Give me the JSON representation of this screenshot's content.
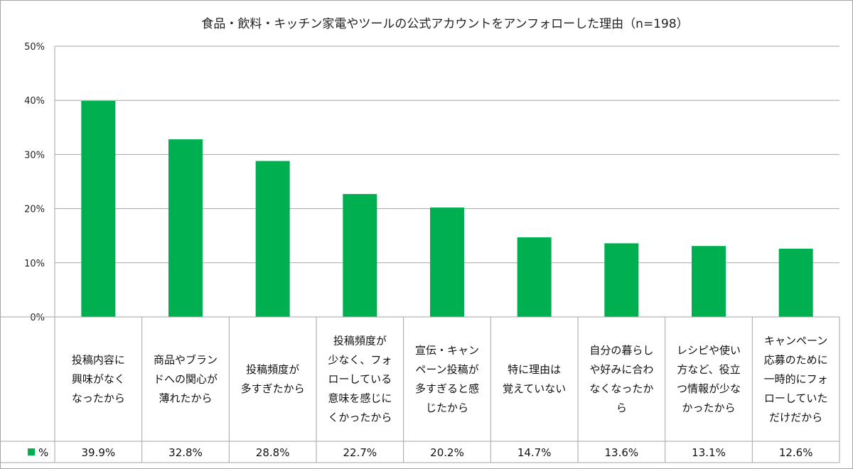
{
  "chart_data": {
    "type": "bar",
    "title": "食品・飲料・キッチン家電やツールの公式アカウントをアンフォローした理由（n=198）",
    "categories": [
      [
        "投稿内容に",
        "興味がなく",
        "なったから"
      ],
      [
        "商品やブラン",
        "ドへの関心が",
        "薄れたから"
      ],
      [
        "投稿頻度が",
        "多すぎたから"
      ],
      [
        "投稿頻度が",
        "少なく、フォ",
        "ローしている",
        "意味を感じに",
        "くかったから"
      ],
      [
        "宣伝・キャン",
        "ペーン投稿が",
        "多すぎると感",
        "じたから"
      ],
      [
        "特に理由は",
        "覚えていない"
      ],
      [
        "自分の暮らし",
        "や好みに合わ",
        "なくなったか",
        "ら"
      ],
      [
        "レシピや使い",
        "方など、役立",
        "つ情報が少な",
        "かったから"
      ],
      [
        "キャンペーン",
        "応募のために",
        "一時的にフォ",
        "ローしていた",
        "だけだから"
      ]
    ],
    "series": [
      {
        "name": "%",
        "color": "#00b050",
        "values": [
          39.9,
          32.8,
          28.8,
          22.7,
          20.2,
          14.7,
          13.6,
          13.1,
          12.6
        ],
        "value_labels": [
          "39.9%",
          "32.8%",
          "28.8%",
          "22.7%",
          "20.2%",
          "14.7%",
          "13.6%",
          "13.1%",
          "12.6%"
        ]
      }
    ],
    "ylim": [
      0,
      50
    ],
    "yticks": [
      0,
      10,
      20,
      30,
      40,
      50
    ],
    "ytick_labels": [
      "0%",
      "10%",
      "20%",
      "30%",
      "40%",
      "50%"
    ],
    "grid": true,
    "legend": "bottom-left data table",
    "colors": {
      "bar": "#00b050",
      "grid": "#a6a6a6",
      "axis": "#a6a6a6"
    }
  }
}
